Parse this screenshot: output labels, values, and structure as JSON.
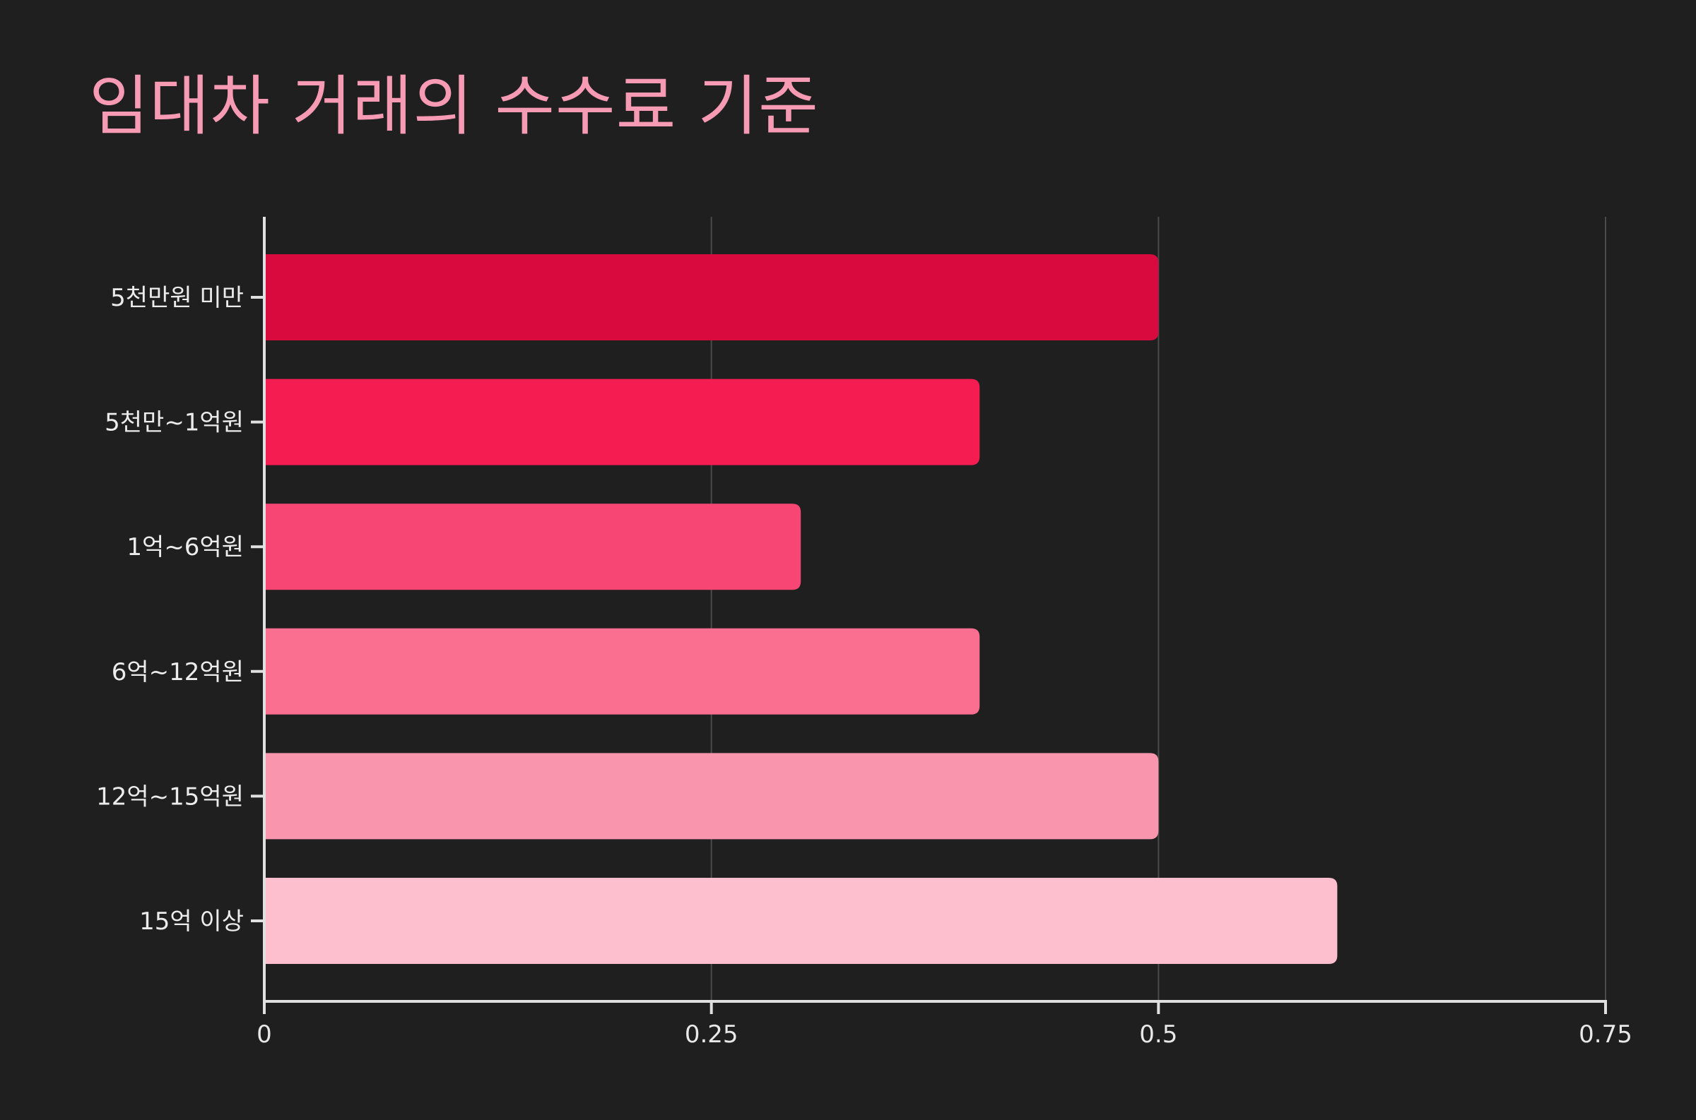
{
  "chart_data": {
    "type": "bar",
    "orientation": "horizontal",
    "title": "임대차 거래의 수수료 기준",
    "categories": [
      "5천만원 미만",
      "5천만~1억원",
      "1억~6억원",
      "6억~12억원",
      "12억~15억원",
      "15억 이상"
    ],
    "values": [
      0.5,
      0.4,
      0.3,
      0.4,
      0.5,
      0.6
    ],
    "xlim": [
      0,
      0.75
    ],
    "xticks": [
      "0",
      "0.25",
      "0.5",
      "0.75"
    ],
    "xtick_values": [
      0,
      0.25,
      0.5,
      0.75
    ],
    "grid": true,
    "colors": {
      "background": "#1f1f1f",
      "title": "#f79ab4",
      "axis": "#e0e0e0",
      "grid": "#4a4a4a",
      "bars": [
        "#d90b3e",
        "#f51c51",
        "#f84674",
        "#fa6e90",
        "#f995ad",
        "#fdbecd"
      ]
    }
  }
}
